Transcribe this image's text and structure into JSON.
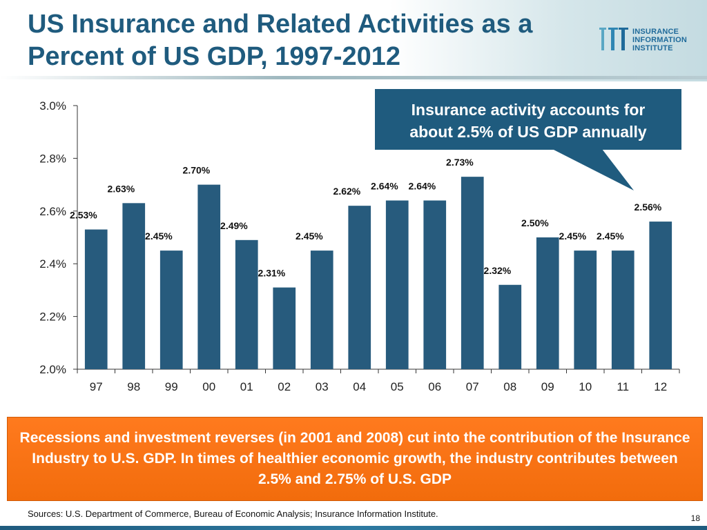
{
  "slide": {
    "title": "US Insurance and Related Activities as a Percent of US GDP, 1997-2012",
    "logo": {
      "line1": "INSURANCE",
      "line2": "INFORMATION",
      "line3": "INSTITUTE"
    },
    "banner": "Recessions and investment reverses (in 2001 and 2008) cut into the contribution of the Insurance Industry to U.S. GDP. In times of healthier economic growth, the industry contributes between 2.5% and 2.75% of U.S. GDP",
    "sources": "Sources: U.S. Department of Commerce, Bureau of Economic Analysis; Insurance Information Institute.",
    "page_number": "18",
    "colors": {
      "bar": "#275b7d",
      "title": "#1f5b7e",
      "banner": "#f26c0c",
      "callout": "#1f5b7e"
    }
  },
  "chart_data": {
    "type": "bar",
    "title": "US Insurance and Related Activities as a Percent of US GDP, 1997-2012",
    "categories": [
      "97",
      "98",
      "99",
      "00",
      "01",
      "02",
      "03",
      "04",
      "05",
      "06",
      "07",
      "08",
      "09",
      "10",
      "11",
      "12"
    ],
    "values": [
      2.53,
      2.63,
      2.45,
      2.7,
      2.49,
      2.31,
      2.45,
      2.62,
      2.64,
      2.64,
      2.73,
      2.32,
      2.5,
      2.45,
      2.45,
      2.56
    ],
    "data_labels": [
      "2.53%",
      "2.63%",
      "2.45%",
      "2.70%",
      "2.49%",
      "2.31%",
      "2.45%",
      "2.62%",
      "2.64%",
      "2.64%",
      "2.73%",
      "2.32%",
      "2.50%",
      "2.45%",
      "2.45%",
      "2.56%"
    ],
    "ylim": [
      2.0,
      3.0
    ],
    "yticks": [
      2.0,
      2.2,
      2.4,
      2.6,
      2.8,
      3.0
    ],
    "ytick_labels": [
      "2.0%",
      "2.2%",
      "2.4%",
      "2.6%",
      "2.8%",
      "3.0%"
    ],
    "xlabel": "",
    "ylabel": "",
    "grid": false,
    "annotation": {
      "line1": "Insurance activity accounts for",
      "line2": "about 2.5% of US GDP annually"
    }
  }
}
